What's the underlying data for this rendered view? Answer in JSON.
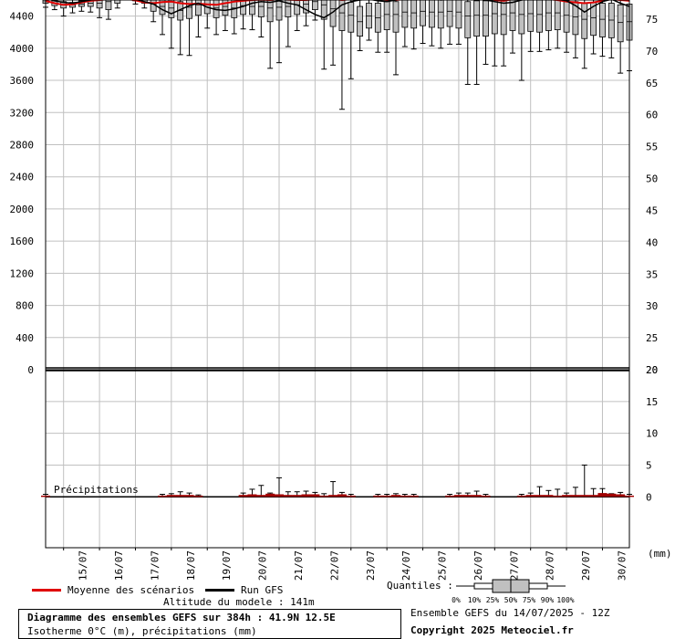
{
  "chart_data": [
    {
      "type": "box",
      "panel": "upper",
      "title": "",
      "y_left_ticks": [
        "4400",
        "4000",
        "3600",
        "3200",
        "2800",
        "2400",
        "2000",
        "1600",
        "1200",
        "800",
        "400",
        "0"
      ],
      "y_left_range": [
        0,
        4600
      ],
      "y_right_ticks": [
        "75",
        "70",
        "65",
        "60",
        "55",
        "50",
        "45",
        "40",
        "35",
        "30",
        "25",
        "20"
      ],
      "y_right_range": [
        20,
        78
      ],
      "x_labels": [
        "15/07",
        "16/07",
        "17/07",
        "18/07",
        "19/07",
        "20/07",
        "21/07",
        "22/07",
        "23/07",
        "24/07",
        "25/07",
        "26/07",
        "27/07",
        "28/07",
        "29/07",
        "30/07"
      ],
      "x_range_days": [
        14.5,
        30.75
      ],
      "grid": true,
      "series": [
        {
          "name": "Moyenne des scénarios",
          "color": "#e00000",
          "x": [
            14.5,
            14.75,
            15.0,
            15.25,
            15.5,
            15.75,
            16.0,
            16.25,
            16.5,
            16.75,
            17.0,
            17.25,
            17.5,
            17.75,
            18.0,
            18.25,
            18.5,
            18.75,
            19.0,
            19.25,
            19.5,
            19.75,
            20.0,
            20.25,
            20.5,
            20.75,
            21.0,
            21.25,
            21.5,
            21.75,
            22.0,
            22.25,
            22.5,
            22.75,
            23.0,
            23.25,
            23.5,
            23.75,
            24.0,
            24.25,
            24.5,
            24.75,
            25.0,
            25.25,
            25.5,
            25.75,
            26.0,
            26.25,
            26.5,
            26.75,
            27.0,
            27.25,
            27.5,
            27.75,
            28.0,
            28.25,
            28.5,
            28.75,
            29.0,
            29.25,
            29.5,
            29.75,
            30.0,
            30.25,
            30.5,
            30.75
          ],
          "y": [
            4590,
            4560,
            4540,
            4545,
            4570,
            4590,
            4600,
            4610,
            4620,
            4615,
            4595,
            4570,
            4560,
            4575,
            4580,
            4560,
            4550,
            4555,
            4545,
            4540,
            4560,
            4580,
            4590,
            4600,
            4605,
            4600,
            4610,
            4605,
            4600,
            4600,
            4610,
            4620,
            4615,
            4600,
            4610,
            4620,
            4630,
            4610,
            4600,
            4600,
            4610,
            4620,
            4630,
            4620,
            4610,
            4620,
            4630,
            4640,
            4630,
            4620,
            4600,
            4590,
            4610,
            4630,
            4640,
            4630,
            4610,
            4600,
            4580,
            4570,
            4560,
            4570,
            4590,
            4610,
            4600,
            4590
          ]
        },
        {
          "name": "Run GFS",
          "color": "#000000",
          "x": [
            14.5,
            14.75,
            15.0,
            15.25,
            15.5,
            15.75,
            16.0,
            16.25,
            16.5,
            16.75,
            17.0,
            17.25,
            17.5,
            17.75,
            18.0,
            18.25,
            18.5,
            18.75,
            19.0,
            19.25,
            19.5,
            19.75,
            20.0,
            20.25,
            20.5,
            20.75,
            21.0,
            21.25,
            21.5,
            21.75,
            22.0,
            22.25,
            22.5,
            22.75,
            23.0,
            23.25,
            23.5,
            23.75,
            24.0,
            24.25,
            24.5,
            24.75,
            25.0,
            25.25,
            25.5,
            25.75,
            26.0,
            26.25,
            26.5,
            26.75,
            27.0,
            27.25,
            27.5,
            27.75,
            28.0,
            28.25,
            28.5,
            28.75,
            29.0,
            29.25,
            29.5,
            29.75,
            30.0,
            30.25,
            30.5,
            30.75
          ],
          "y": [
            4620,
            4590,
            4570,
            4560,
            4580,
            4600,
            4620,
            4640,
            4650,
            4630,
            4610,
            4580,
            4550,
            4480,
            4430,
            4480,
            4530,
            4560,
            4510,
            4480,
            4470,
            4490,
            4520,
            4560,
            4580,
            4570,
            4590,
            4560,
            4540,
            4480,
            4420,
            4380,
            4450,
            4540,
            4580,
            4600,
            4610,
            4590,
            4580,
            4600,
            4620,
            4630,
            4640,
            4620,
            4600,
            4610,
            4640,
            4660,
            4640,
            4600,
            4580,
            4560,
            4570,
            4600,
            4620,
            4650,
            4640,
            4610,
            4590,
            4530,
            4450,
            4520,
            4580,
            4610,
            4560,
            4520
          ]
        }
      ],
      "boxes": [
        {
          "x": 14.5,
          "p10": 4510,
          "p25": 4560,
          "p50": 4590,
          "p75": 4620,
          "p90": 4650
        },
        {
          "x": 14.75,
          "p10": 4480,
          "p25": 4530,
          "p50": 4560,
          "p75": 4590,
          "p90": 4640
        },
        {
          "x": 15.0,
          "p10": 4400,
          "p25": 4500,
          "p50": 4540,
          "p75": 4580,
          "p90": 4620
        },
        {
          "x": 15.25,
          "p10": 4440,
          "p25": 4510,
          "p50": 4540,
          "p75": 4570,
          "p90": 4620
        },
        {
          "x": 15.5,
          "p10": 4460,
          "p25": 4520,
          "p50": 4550,
          "p75": 4590,
          "p90": 4640
        },
        {
          "x": 15.75,
          "p10": 4450,
          "p25": 4520,
          "p50": 4560,
          "p75": 4600,
          "p90": 4650
        },
        {
          "x": 16.0,
          "p10": 4380,
          "p25": 4500,
          "p50": 4560,
          "p75": 4620,
          "p90": 4680
        },
        {
          "x": 16.25,
          "p10": 4360,
          "p25": 4480,
          "p50": 4580,
          "p75": 4640,
          "p90": 4700
        },
        {
          "x": 16.5,
          "p10": 4500,
          "p25": 4560,
          "p50": 4600,
          "p75": 4650,
          "p90": 4700
        },
        {
          "x": 17.0,
          "p10": 4550,
          "p25": 4590,
          "p50": 4620,
          "p75": 4660,
          "p90": 4700
        },
        {
          "x": 17.25,
          "p10": 4500,
          "p25": 4560,
          "p50": 4600,
          "p75": 4650,
          "p90": 4700
        },
        {
          "x": 17.5,
          "p10": 4330,
          "p25": 4460,
          "p50": 4550,
          "p75": 4630,
          "p90": 4700
        },
        {
          "x": 17.75,
          "p10": 4170,
          "p25": 4420,
          "p50": 4520,
          "p75": 4610,
          "p90": 4700
        },
        {
          "x": 18.0,
          "p10": 4000,
          "p25": 4380,
          "p50": 4500,
          "p75": 4600,
          "p90": 4700
        },
        {
          "x": 18.25,
          "p10": 3920,
          "p25": 4350,
          "p50": 4470,
          "p75": 4580,
          "p90": 4700
        },
        {
          "x": 18.5,
          "p10": 3910,
          "p25": 4370,
          "p50": 4510,
          "p75": 4610,
          "p90": 4700
        },
        {
          "x": 18.75,
          "p10": 4140,
          "p25": 4410,
          "p50": 4540,
          "p75": 4640,
          "p90": 4700
        },
        {
          "x": 19.0,
          "p10": 4250,
          "p25": 4430,
          "p50": 4540,
          "p75": 4640,
          "p90": 4700
        },
        {
          "x": 19.25,
          "p10": 4170,
          "p25": 4380,
          "p50": 4500,
          "p75": 4600,
          "p90": 4700
        },
        {
          "x": 19.5,
          "p10": 4220,
          "p25": 4410,
          "p50": 4520,
          "p75": 4620,
          "p90": 4700
        },
        {
          "x": 19.75,
          "p10": 4180,
          "p25": 4380,
          "p50": 4500,
          "p75": 4620,
          "p90": 4700
        },
        {
          "x": 20.0,
          "p10": 4240,
          "p25": 4420,
          "p50": 4530,
          "p75": 4630,
          "p90": 4700
        },
        {
          "x": 20.25,
          "p10": 4230,
          "p25": 4420,
          "p50": 4520,
          "p75": 4630,
          "p90": 4700
        },
        {
          "x": 20.5,
          "p10": 4140,
          "p25": 4390,
          "p50": 4520,
          "p75": 4630,
          "p90": 4700
        },
        {
          "x": 20.75,
          "p10": 3750,
          "p25": 4330,
          "p50": 4500,
          "p75": 4620,
          "p90": 4700
        },
        {
          "x": 21.0,
          "p10": 3820,
          "p25": 4350,
          "p50": 4510,
          "p75": 4630,
          "p90": 4700
        },
        {
          "x": 21.25,
          "p10": 4020,
          "p25": 4390,
          "p50": 4520,
          "p75": 4640,
          "p90": 4700
        },
        {
          "x": 21.5,
          "p10": 4220,
          "p25": 4420,
          "p50": 4540,
          "p75": 4640,
          "p90": 4700
        },
        {
          "x": 21.75,
          "p10": 4280,
          "p25": 4440,
          "p50": 4550,
          "p75": 4650,
          "p90": 4700
        },
        {
          "x": 22.0,
          "p10": 4350,
          "p25": 4480,
          "p50": 4580,
          "p75": 4660,
          "p90": 4700
        },
        {
          "x": 22.25,
          "p10": 3740,
          "p25": 4360,
          "p50": 4540,
          "p75": 4640,
          "p90": 4700
        },
        {
          "x": 22.5,
          "p10": 3790,
          "p25": 4270,
          "p50": 4490,
          "p75": 4620,
          "p90": 4700
        },
        {
          "x": 22.75,
          "p10": 3240,
          "p25": 4220,
          "p50": 4440,
          "p75": 4600,
          "p90": 4700
        },
        {
          "x": 23.0,
          "p10": 3620,
          "p25": 4200,
          "p50": 4410,
          "p75": 4570,
          "p90": 4700
        },
        {
          "x": 23.25,
          "p10": 3970,
          "p25": 4150,
          "p50": 4330,
          "p75": 4520,
          "p90": 4700
        },
        {
          "x": 23.5,
          "p10": 4100,
          "p25": 4250,
          "p50": 4400,
          "p75": 4560,
          "p90": 4700
        },
        {
          "x": 23.75,
          "p10": 3950,
          "p25": 4200,
          "p50": 4380,
          "p75": 4560,
          "p90": 4700
        },
        {
          "x": 24.0,
          "p10": 3950,
          "p25": 4230,
          "p50": 4420,
          "p75": 4580,
          "p90": 4700
        },
        {
          "x": 24.25,
          "p10": 3670,
          "p25": 4200,
          "p50": 4420,
          "p75": 4580,
          "p90": 4700
        },
        {
          "x": 24.5,
          "p10": 4020,
          "p25": 4260,
          "p50": 4450,
          "p75": 4600,
          "p90": 4700
        },
        {
          "x": 24.75,
          "p10": 3990,
          "p25": 4250,
          "p50": 4440,
          "p75": 4600,
          "p90": 4700
        },
        {
          "x": 25.0,
          "p10": 4060,
          "p25": 4280,
          "p50": 4460,
          "p75": 4610,
          "p90": 4700
        },
        {
          "x": 25.25,
          "p10": 4030,
          "p25": 4260,
          "p50": 4450,
          "p75": 4600,
          "p90": 4700
        },
        {
          "x": 25.5,
          "p10": 4000,
          "p25": 4250,
          "p50": 4450,
          "p75": 4610,
          "p90": 4700
        },
        {
          "x": 25.75,
          "p10": 4050,
          "p25": 4270,
          "p50": 4460,
          "p75": 4620,
          "p90": 4700
        },
        {
          "x": 26.0,
          "p10": 4050,
          "p25": 4250,
          "p50": 4450,
          "p75": 4610,
          "p90": 4700
        },
        {
          "x": 26.25,
          "p10": 3550,
          "p25": 4130,
          "p50": 4400,
          "p75": 4580,
          "p90": 4700
        },
        {
          "x": 26.5,
          "p10": 3550,
          "p25": 4150,
          "p50": 4410,
          "p75": 4590,
          "p90": 4700
        },
        {
          "x": 26.75,
          "p10": 3800,
          "p25": 4150,
          "p50": 4410,
          "p75": 4590,
          "p90": 4700
        },
        {
          "x": 27.0,
          "p10": 3780,
          "p25": 4180,
          "p50": 4430,
          "p75": 4600,
          "p90": 4700
        },
        {
          "x": 27.25,
          "p10": 3780,
          "p25": 4170,
          "p50": 4420,
          "p75": 4600,
          "p90": 4700
        },
        {
          "x": 27.5,
          "p10": 3940,
          "p25": 4220,
          "p50": 4440,
          "p75": 4610,
          "p90": 4700
        },
        {
          "x": 27.75,
          "p10": 3600,
          "p25": 4180,
          "p50": 4420,
          "p75": 4600,
          "p90": 4700
        },
        {
          "x": 28.0,
          "p10": 3960,
          "p25": 4210,
          "p50": 4430,
          "p75": 4610,
          "p90": 4700
        },
        {
          "x": 28.25,
          "p10": 3960,
          "p25": 4200,
          "p50": 4420,
          "p75": 4600,
          "p90": 4700
        },
        {
          "x": 28.5,
          "p10": 3980,
          "p25": 4220,
          "p50": 4440,
          "p75": 4610,
          "p90": 4700
        },
        {
          "x": 28.75,
          "p10": 4000,
          "p25": 4230,
          "p50": 4440,
          "p75": 4610,
          "p90": 4700
        },
        {
          "x": 29.0,
          "p10": 3950,
          "p25": 4200,
          "p50": 4410,
          "p75": 4590,
          "p90": 4700
        },
        {
          "x": 29.25,
          "p10": 3880,
          "p25": 4170,
          "p50": 4390,
          "p75": 4580,
          "p90": 4700
        },
        {
          "x": 29.5,
          "p10": 3750,
          "p25": 4120,
          "p50": 4360,
          "p75": 4560,
          "p90": 4700
        },
        {
          "x": 29.75,
          "p10": 3930,
          "p25": 4160,
          "p50": 4380,
          "p75": 4570,
          "p90": 4700
        },
        {
          "x": 30.0,
          "p10": 3900,
          "p25": 4140,
          "p50": 4360,
          "p75": 4560,
          "p90": 4700
        },
        {
          "x": 30.25,
          "p10": 3880,
          "p25": 4130,
          "p50": 4350,
          "p75": 4560,
          "p90": 4700
        },
        {
          "x": 30.5,
          "p10": 3690,
          "p25": 4080,
          "p50": 4320,
          "p75": 4540,
          "p90": 4700
        },
        {
          "x": 30.75,
          "p10": 3720,
          "p25": 4100,
          "p50": 4330,
          "p75": 4550,
          "p90": 4700
        }
      ]
    },
    {
      "type": "bar",
      "panel": "lower",
      "label": "Précipitations",
      "y_right_ticks": [
        "20",
        "15",
        "10",
        "5",
        "0"
      ],
      "y_range": [
        -8,
        20
      ],
      "unit": "(mm)",
      "x": [
        14.5,
        17.75,
        18.0,
        18.25,
        18.5,
        18.75,
        20.0,
        20.25,
        20.5,
        20.75,
        21.0,
        21.25,
        21.5,
        21.75,
        22.0,
        22.25,
        22.5,
        22.75,
        23.0,
        23.75,
        24.0,
        24.25,
        24.5,
        24.75,
        25.75,
        26.0,
        26.25,
        26.5,
        26.75,
        27.75,
        28.0,
        28.25,
        28.5,
        28.75,
        29.0,
        29.25,
        29.5,
        29.75,
        30.0,
        30.25,
        30.5,
        30.75
      ],
      "values": [
        0.2,
        0.2,
        0.3,
        0.3,
        0.3,
        0.2,
        0.3,
        0.4,
        0.3,
        0.5,
        0.4,
        0.3,
        0.3,
        0.4,
        0.4,
        0.2,
        0.3,
        0.4,
        0.2,
        0.2,
        0.2,
        0.3,
        0.2,
        0.2,
        0.2,
        0.3,
        0.3,
        0.3,
        0.2,
        0.2,
        0.3,
        0.3,
        0.3,
        0.2,
        0.3,
        0.3,
        0.3,
        0.3,
        0.6,
        0.5,
        0.4,
        0.2
      ],
      "whiskers": [
        0.4,
        0.4,
        0.5,
        0.8,
        0.6,
        0.3,
        0.6,
        1.2,
        1.8,
        0.6,
        3.0,
        0.8,
        0.8,
        0.9,
        0.7,
        0.5,
        2.4,
        0.7,
        0.4,
        0.4,
        0.4,
        0.5,
        0.4,
        0.4,
        0.4,
        0.6,
        0.6,
        0.9,
        0.4,
        0.4,
        0.6,
        1.6,
        1.0,
        1.2,
        0.6,
        1.5,
        5.0,
        1.3,
        1.3,
        0.5,
        0.7,
        0.4
      ]
    }
  ],
  "legend": {
    "mean_label": "Moyenne des scénarios",
    "mean_color": "#e00000",
    "run_label": "Run GFS",
    "run_color": "#000000",
    "quantiles_label": "Quantiles :",
    "quantile_ticks": [
      "0%",
      "10%",
      "25%",
      "50%",
      "75%",
      "90%",
      "100%"
    ],
    "altitude": "Altitude du modele : 141m"
  },
  "info": {
    "title": "Diagramme des ensembles GEFS sur 384h : 41.9N 12.5E",
    "subtitle": "Isotherme 0°C (m), précipitations (mm)",
    "ensemble": "Ensemble GEFS du 14/07/2025 - 12Z",
    "copyright": "Copyright 2025 Meteociel.fr"
  },
  "colors": {
    "box_fill": "#c0c0c0",
    "grid": "#c0c0c0",
    "precip_bar": "#a00000"
  }
}
